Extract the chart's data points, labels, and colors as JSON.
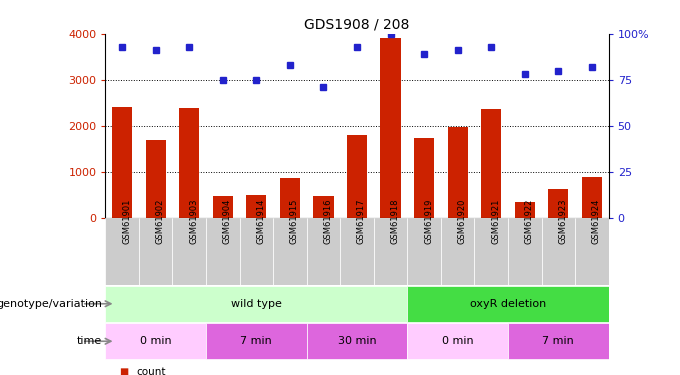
{
  "title": "GDS1908 / 208",
  "samples": [
    "GSM61901",
    "GSM61902",
    "GSM61903",
    "GSM61904",
    "GSM61914",
    "GSM61915",
    "GSM61916",
    "GSM61917",
    "GSM61918",
    "GSM61919",
    "GSM61920",
    "GSM61921",
    "GSM61922",
    "GSM61923",
    "GSM61924"
  ],
  "counts": [
    2400,
    1680,
    2380,
    460,
    480,
    860,
    460,
    1790,
    3900,
    1720,
    1960,
    2360,
    340,
    620,
    880
  ],
  "percentiles": [
    93,
    91,
    93,
    75,
    75,
    83,
    71,
    93,
    100,
    89,
    91,
    93,
    78,
    80,
    82
  ],
  "ylim_left": [
    0,
    4000
  ],
  "ylim_right": [
    0,
    100
  ],
  "yticks_left": [
    0,
    1000,
    2000,
    3000,
    4000
  ],
  "yticks_right": [
    0,
    25,
    50,
    75,
    100
  ],
  "bar_color": "#cc2200",
  "dot_color": "#2222cc",
  "title_fontsize": 10,
  "genotype_groups": [
    {
      "label": "wild type",
      "start": 0,
      "end": 9,
      "color": "#ccffcc"
    },
    {
      "label": "oxyR deletion",
      "start": 9,
      "end": 15,
      "color": "#44dd44"
    }
  ],
  "time_groups": [
    {
      "label": "0 min",
      "start": 0,
      "end": 3,
      "color": "#ffccff"
    },
    {
      "label": "7 min",
      "start": 3,
      "end": 6,
      "color": "#dd66dd"
    },
    {
      "label": "30 min",
      "start": 6,
      "end": 9,
      "color": "#dd66dd"
    },
    {
      "label": "0 min",
      "start": 9,
      "end": 12,
      "color": "#ffccff"
    },
    {
      "label": "7 min",
      "start": 12,
      "end": 15,
      "color": "#dd66dd"
    }
  ],
  "legend_count_color": "#cc2200",
  "legend_dot_color": "#2222cc",
  "xlabel_genotype": "genotype/variation",
  "xlabel_time": "time",
  "background_color": "#ffffff",
  "xtick_bg": "#cccccc"
}
